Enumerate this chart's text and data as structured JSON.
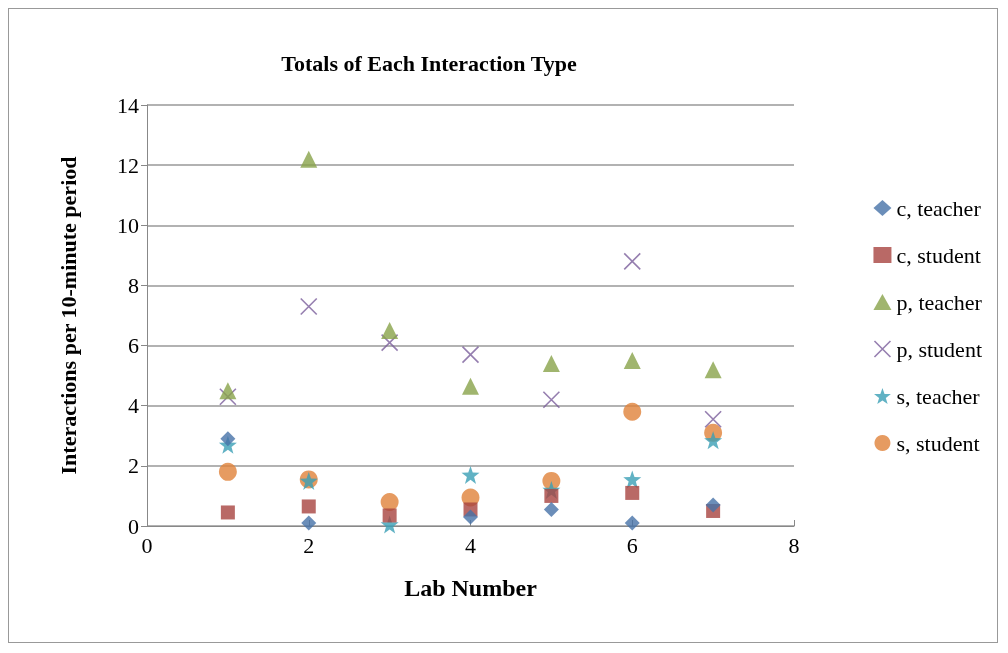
{
  "chart_data": {
    "type": "scatter",
    "title": "Totals of Each Interaction Type",
    "xlabel": "Lab Number",
    "ylabel": "Interactions per 10-minute period",
    "x": [
      1,
      2,
      3,
      4,
      5,
      6,
      7
    ],
    "series": [
      {
        "name": "c, teacher",
        "color": "#4672a8",
        "marker": "diamond",
        "values": [
          2.9,
          0.1,
          null,
          0.3,
          0.55,
          0.1,
          0.7
        ]
      },
      {
        "name": "c, student",
        "color": "#a84340",
        "marker": "square",
        "values": [
          0.45,
          0.65,
          0.35,
          0.55,
          1.0,
          1.1,
          0.5
        ]
      },
      {
        "name": "p, teacher",
        "color": "#88a34a",
        "marker": "triangle",
        "values": [
          4.5,
          12.2,
          6.5,
          4.65,
          5.4,
          5.5,
          5.2
        ]
      },
      {
        "name": "p, student",
        "color": "#7a5e9b",
        "marker": "cross",
        "values": [
          4.3,
          7.3,
          6.1,
          5.7,
          4.2,
          8.8,
          3.55
        ]
      },
      {
        "name": "s, teacher",
        "color": "#3a9fb5",
        "marker": "star",
        "values": [
          2.7,
          1.5,
          0.05,
          1.7,
          1.2,
          1.55,
          2.85
        ]
      },
      {
        "name": "s, student",
        "color": "#e0823a",
        "marker": "circle",
        "values": [
          1.8,
          1.55,
          0.8,
          0.95,
          1.5,
          3.8,
          3.1
        ]
      }
    ],
    "xlim": [
      0,
      8
    ],
    "xticks": [
      0,
      2,
      4,
      6,
      8
    ],
    "ylim": [
      0,
      14
    ],
    "yticks": [
      0,
      2,
      4,
      6,
      8,
      10,
      12,
      14
    ],
    "grid": "y",
    "legend": "right"
  }
}
